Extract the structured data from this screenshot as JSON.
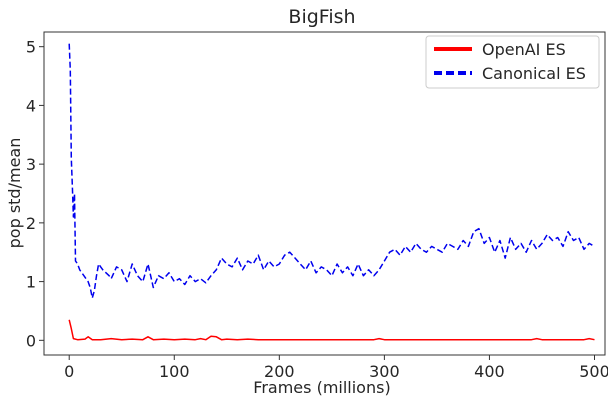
{
  "chart_data": {
    "type": "line",
    "title": "BigFish",
    "xlabel": "Frames (millions)",
    "ylabel": "pop std/mean",
    "xlim": [
      -24,
      510
    ],
    "ylim": [
      -0.25,
      5.25
    ],
    "xticks": [
      0,
      100,
      200,
      300,
      400,
      500
    ],
    "yticks": [
      0,
      1,
      2,
      3,
      4,
      5
    ],
    "grid": false,
    "legend_position": "top-right",
    "series": [
      {
        "name": "OpenAI ES",
        "color": "#ff0000",
        "style": "solid",
        "x": [
          0,
          2,
          4,
          8,
          15,
          18,
          22,
          30,
          40,
          50,
          60,
          70,
          75,
          80,
          90,
          100,
          110,
          120,
          125,
          130,
          135,
          140,
          145,
          150,
          160,
          170,
          180,
          200,
          220,
          240,
          260,
          280,
          290,
          295,
          300,
          320,
          350,
          380,
          400,
          420,
          440,
          445,
          450,
          460,
          480,
          490,
          495,
          500
        ],
        "y": [
          0.35,
          0.2,
          0.03,
          0.01,
          0.02,
          0.06,
          0.01,
          0.01,
          0.03,
          0.01,
          0.02,
          0.01,
          0.06,
          0.01,
          0.02,
          0.01,
          0.02,
          0.01,
          0.03,
          0.01,
          0.07,
          0.06,
          0.01,
          0.02,
          0.01,
          0.02,
          0.01,
          0.01,
          0.01,
          0.01,
          0.01,
          0.01,
          0.01,
          0.03,
          0.01,
          0.01,
          0.01,
          0.01,
          0.01,
          0.01,
          0.01,
          0.03,
          0.01,
          0.01,
          0.01,
          0.01,
          0.03,
          0.01
        ]
      },
      {
        "name": "Canonical ES",
        "color": "#0000ee",
        "style": "dashed",
        "x": [
          0,
          1,
          2,
          3,
          4,
          5,
          6,
          8,
          10,
          12,
          14,
          16,
          18,
          20,
          22,
          24,
          26,
          28,
          30,
          32,
          35,
          38,
          40,
          45,
          50,
          55,
          60,
          65,
          70,
          75,
          80,
          85,
          90,
          95,
          100,
          105,
          110,
          115,
          120,
          125,
          130,
          135,
          140,
          145,
          150,
          155,
          160,
          165,
          170,
          175,
          180,
          185,
          190,
          195,
          200,
          205,
          210,
          215,
          220,
          225,
          230,
          235,
          240,
          245,
          250,
          255,
          260,
          265,
          270,
          275,
          280,
          285,
          290,
          295,
          300,
          305,
          310,
          315,
          320,
          325,
          330,
          335,
          340,
          345,
          350,
          355,
          360,
          365,
          370,
          375,
          380,
          385,
          390,
          395,
          400,
          405,
          410,
          415,
          420,
          425,
          430,
          435,
          440,
          445,
          450,
          455,
          460,
          465,
          470,
          475,
          480,
          485,
          490,
          495,
          500
        ],
        "y": [
          5.05,
          4.6,
          3.1,
          2.6,
          2.1,
          2.5,
          1.35,
          1.3,
          1.2,
          1.15,
          1.1,
          1.05,
          1.0,
          0.9,
          0.72,
          0.85,
          1.1,
          1.3,
          1.25,
          1.2,
          1.15,
          1.1,
          1.05,
          1.25,
          1.2,
          1.0,
          1.3,
          1.1,
          1.0,
          1.3,
          0.9,
          1.1,
          1.05,
          1.15,
          1.0,
          1.05,
          0.95,
          1.1,
          1.0,
          1.05,
          0.98,
          1.1,
          1.2,
          1.4,
          1.3,
          1.25,
          1.4,
          1.2,
          1.35,
          1.3,
          1.45,
          1.2,
          1.35,
          1.25,
          1.3,
          1.45,
          1.5,
          1.4,
          1.3,
          1.2,
          1.35,
          1.15,
          1.25,
          1.2,
          1.1,
          1.3,
          1.15,
          1.25,
          1.1,
          1.3,
          1.1,
          1.2,
          1.1,
          1.2,
          1.35,
          1.5,
          1.55,
          1.45,
          1.6,
          1.5,
          1.65,
          1.55,
          1.5,
          1.6,
          1.55,
          1.5,
          1.65,
          1.6,
          1.55,
          1.7,
          1.6,
          1.85,
          1.9,
          1.65,
          1.75,
          1.5,
          1.7,
          1.4,
          1.75,
          1.55,
          1.65,
          1.5,
          1.7,
          1.55,
          1.65,
          1.8,
          1.7,
          1.75,
          1.6,
          1.85,
          1.7,
          1.75,
          1.55,
          1.65,
          1.6
        ]
      }
    ]
  }
}
